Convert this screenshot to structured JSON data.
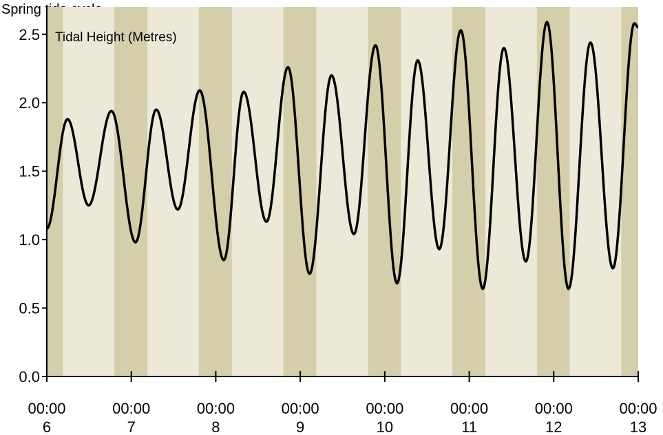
{
  "header": {
    "caption": "Spring tide cycle"
  },
  "chart_data": {
    "type": "line",
    "title": "Tidal Height (Metres)",
    "xlabel": "",
    "ylabel": "",
    "xlim": [
      6.0,
      13.0
    ],
    "ylim": [
      0.0,
      2.7
    ],
    "y_ticks": [
      {
        "value": 0.0,
        "label": "0.0"
      },
      {
        "value": 0.5,
        "label": "0.5"
      },
      {
        "value": 1.0,
        "label": "1.0"
      },
      {
        "value": 1.5,
        "label": "1.5"
      },
      {
        "value": 2.0,
        "label": "2.0"
      },
      {
        "value": 2.5,
        "label": "2.5"
      }
    ],
    "x_ticks": [
      {
        "value": 6,
        "time": "00:00",
        "day": "6"
      },
      {
        "value": 7,
        "time": "00:00",
        "day": "7"
      },
      {
        "value": 8,
        "time": "00:00",
        "day": "8"
      },
      {
        "value": 9,
        "time": "00:00",
        "day": "9"
      },
      {
        "value": 10,
        "time": "00:00",
        "day": "10"
      },
      {
        "value": 11,
        "time": "00:00",
        "day": "11"
      },
      {
        "value": 12,
        "time": "00:00",
        "day": "12"
      },
      {
        "value": 13,
        "time": "00:00",
        "day": "13"
      }
    ],
    "night_bands": [
      [
        6.0,
        6.19
      ],
      [
        6.8,
        7.19
      ],
      [
        7.8,
        8.19
      ],
      [
        8.8,
        9.19
      ],
      [
        9.8,
        10.19
      ],
      [
        10.8,
        11.19
      ],
      [
        11.8,
        12.19
      ],
      [
        12.8,
        13.0
      ]
    ],
    "series": [
      {
        "extrema": [
          {
            "x": 6.0,
            "y": 1.08
          },
          {
            "x": 6.245,
            "y": 1.88
          },
          {
            "x": 6.495,
            "y": 1.25
          },
          {
            "x": 6.765,
            "y": 1.94
          },
          {
            "x": 7.05,
            "y": 0.98
          },
          {
            "x": 7.295,
            "y": 1.95
          },
          {
            "x": 7.55,
            "y": 1.22
          },
          {
            "x": 7.81,
            "y": 2.09
          },
          {
            "x": 8.095,
            "y": 0.85
          },
          {
            "x": 8.33,
            "y": 2.08
          },
          {
            "x": 8.6,
            "y": 1.13
          },
          {
            "x": 8.855,
            "y": 2.26
          },
          {
            "x": 9.11,
            "y": 0.75
          },
          {
            "x": 9.37,
            "y": 2.2
          },
          {
            "x": 9.635,
            "y": 1.04
          },
          {
            "x": 9.89,
            "y": 2.42
          },
          {
            "x": 10.145,
            "y": 0.68
          },
          {
            "x": 10.39,
            "y": 2.31
          },
          {
            "x": 10.645,
            "y": 0.93
          },
          {
            "x": 10.9,
            "y": 2.53
          },
          {
            "x": 11.16,
            "y": 0.64
          },
          {
            "x": 11.41,
            "y": 2.4
          },
          {
            "x": 11.67,
            "y": 0.84
          },
          {
            "x": 11.92,
            "y": 2.59
          },
          {
            "x": 12.175,
            "y": 0.64
          },
          {
            "x": 12.435,
            "y": 2.44
          },
          {
            "x": 12.7,
            "y": 0.79
          },
          {
            "x": 12.955,
            "y": 2.58
          },
          {
            "x": 13.0,
            "y": 2.55
          }
        ]
      }
    ],
    "colors": {
      "plot_background": "#ece9d8",
      "night_band": "#d5ceaa",
      "line": "#000000",
      "axis": "#000000"
    }
  }
}
